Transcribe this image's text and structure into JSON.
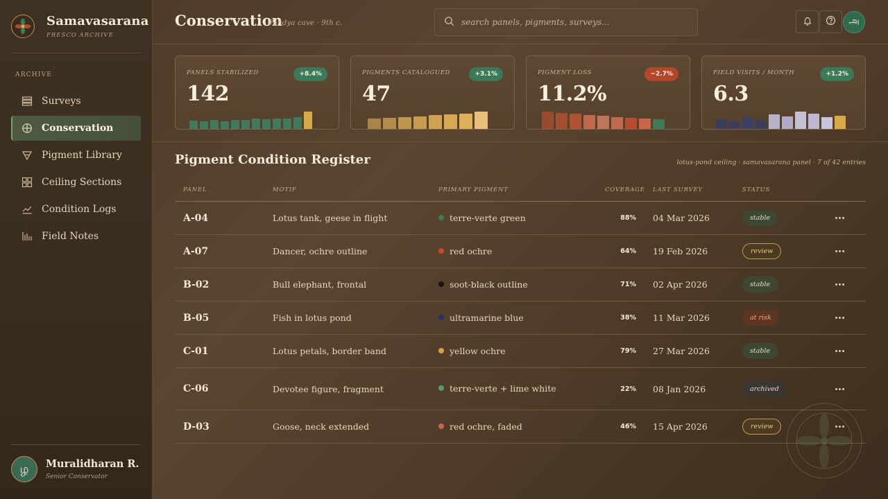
{
  "brand": {
    "name": "Samavasarana",
    "subtitle": "FRESCO ARCHIVE"
  },
  "sidebar": {
    "section": "ARCHIVE",
    "items": [
      {
        "label": "Surveys",
        "icon": "layers-icon",
        "active": false
      },
      {
        "label": "Conservation",
        "icon": "crosshair-icon",
        "active": true
      },
      {
        "label": "Pigment Library",
        "icon": "triangle-icon",
        "active": false
      },
      {
        "label": "Ceiling Sections",
        "icon": "grid-icon",
        "active": false
      },
      {
        "label": "Condition Logs",
        "icon": "line-chart-icon",
        "active": false
      },
      {
        "label": "Field Notes",
        "icon": "bars-icon",
        "active": false
      }
    ]
  },
  "user": {
    "initial": "ழ",
    "name": "Muralidharan R.",
    "role": "Senior Conservator"
  },
  "header": {
    "title": "Conservation",
    "subtitle": "Pandya cave · 9th c.",
    "search_placeholder": "search panels, pigments, surveys...",
    "avatar_initial": "அ",
    "icons": [
      "bell-icon",
      "help-icon"
    ]
  },
  "kpis": [
    {
      "label": "PANELS STABILIZED",
      "value": "142",
      "delta": "+8.4%",
      "trend": "up",
      "bars": [
        0.42,
        0.38,
        0.45,
        0.4,
        0.48,
        0.45,
        0.52,
        0.5,
        0.55,
        0.52,
        0.6,
        0.88
      ],
      "colors": [
        "#3f7a5a",
        "#3f7a5a",
        "#3f7a5a",
        "#3f7a5a",
        "#3f7a5a",
        "#3f7a5a",
        "#3f7a5a",
        "#3f7a5a",
        "#3f7a5a",
        "#3f7a5a",
        "#3f7a5a",
        "#d7a845"
      ]
    },
    {
      "label": "PIGMENTS CATALOGUED",
      "value": "47",
      "delta": "+3.1%",
      "trend": "up",
      "bars": [
        0.52,
        0.58,
        0.62,
        0.66,
        0.7,
        0.75,
        0.8,
        0.88
      ],
      "colors": [
        "#a8844a",
        "#b38c4c",
        "#bc954e",
        "#c49b50",
        "#cda252",
        "#d6a854",
        "#dfb05a",
        "#e8c07a"
      ]
    },
    {
      "label": "PIGMENT LOSS",
      "value": "11.2%",
      "delta": "−2.7%",
      "trend": "down",
      "bars": [
        0.88,
        0.82,
        0.78,
        0.72,
        0.68,
        0.62,
        0.58,
        0.55,
        0.5
      ],
      "colors": [
        "#9a4a2e",
        "#a44e30",
        "#ad5233",
        "#bd6a4c",
        "#c0745a",
        "#c06a50",
        "#b84a30",
        "#c8664a",
        "#3e7a58"
      ]
    },
    {
      "label": "FIELD VISITS / MONTH",
      "value": "6.3",
      "delta": "+1.2%",
      "trend": "up",
      "bars": [
        0.5,
        0.38,
        0.6,
        0.45,
        0.75,
        0.65,
        0.88,
        0.78,
        0.62,
        0.68
      ],
      "colors": [
        "#3c3d5a",
        "#3c3d5a",
        "#3b3f66",
        "#3c3d5a",
        "#b8b4c8",
        "#b0aac4",
        "#c4c0d4",
        "#bcb8d0",
        "#c8c4dc",
        "#d9a847"
      ]
    }
  ],
  "table": {
    "title": "Pigment Condition Register",
    "meta": "lotus-pond ceiling · samavasarana panel · 7 of 42 entries",
    "columns": [
      "PANEL",
      "MOTIF",
      "PRIMARY PIGMENT",
      "COVERAGE",
      "LAST SURVEY",
      "STATUS"
    ],
    "rows": [
      {
        "panel": "A-04",
        "motif": "Lotus tank, geese in flight",
        "pigment": "terre-verte green",
        "dot": "#3f7a5a",
        "coverage": "88%",
        "survey": "04 Mar 2026",
        "status": "stable"
      },
      {
        "panel": "A-07",
        "motif": "Dancer, ochre outline",
        "pigment": "red ochre",
        "dot": "#c24e2e",
        "coverage": "64%",
        "survey": "19 Feb 2026",
        "status": "review"
      },
      {
        "panel": "B-02",
        "motif": "Bull elephant, frontal",
        "pigment": "soot-black outline",
        "dot": "#1c140e",
        "coverage": "71%",
        "survey": "02 Apr 2026",
        "status": "stable"
      },
      {
        "panel": "B-05",
        "motif": "Fish in lotus pond",
        "pigment": "ultramarine blue",
        "dot": "#2a3366",
        "coverage": "38%",
        "survey": "11 Mar 2026",
        "status": "at risk"
      },
      {
        "panel": "C-01",
        "motif": "Lotus petals, border band",
        "pigment": "yellow ochre",
        "dot": "#d6a040",
        "coverage": "79%",
        "survey": "27 Mar 2026",
        "status": "stable"
      },
      {
        "panel": "C-06",
        "motif": "Devotee figure, fragment",
        "pigment": "terre-verte + lime white",
        "dot": "#5a9a76",
        "coverage": "22%",
        "survey": "08 Jan 2026",
        "status": "archived"
      },
      {
        "panel": "D-03",
        "motif": "Goose, neck extended",
        "pigment": "red ochre, faded",
        "dot": "#c8664a",
        "coverage": "46%",
        "survey": "15 Apr 2026",
        "status": "review"
      }
    ]
  }
}
